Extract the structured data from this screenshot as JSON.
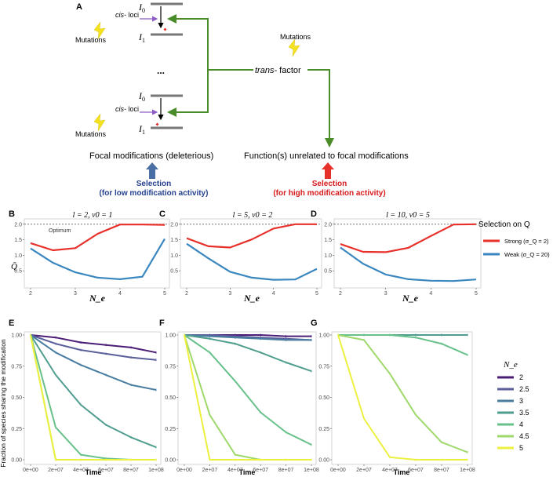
{
  "panel_a": {
    "label": "A",
    "level_top": "I",
    "level_top_sub": "0",
    "level_bottom": "I",
    "level_bottom_sub": "1",
    "cis_label": "cis-",
    "loci_label": " loci",
    "mutations_label": "Mutations",
    "ellipsis": "...",
    "trans_label": "trans-",
    "factor_label": " factor",
    "focal_text": "Focal modifications (deleterious)",
    "unrelated_text": "Function(s) unrelated to focal modifications",
    "sel_low_title": "Selection",
    "sel_low_sub": "(for low modification activity)",
    "sel_high_title": "Selection",
    "sel_high_sub": "(for high modification activity)",
    "colors": {
      "low": "#26418f",
      "high": "#d7191c",
      "arrow_green": "#4a8c2a",
      "arrow_purple": "#8e5cc7",
      "bolt": "#f4e21f"
    }
  },
  "legend_q": {
    "title": "Selection on Q",
    "strong": "Strong (σ_Q = 2)",
    "weak": "Weak (σ_Q = 20)"
  },
  "legend_ne": {
    "title": "N_e",
    "labels": [
      "2",
      "2.5",
      "3",
      "3.5",
      "4",
      "4.5",
      "5"
    ],
    "colors": [
      "#4b1d77",
      "#5a5e9a",
      "#4a7ea1",
      "#4f9d8e",
      "#68c08a",
      "#9fd86b",
      "#ecf03f"
    ]
  },
  "chart_data": [
    {
      "panel": "B",
      "type": "line",
      "title": "l = 2, v0 = 1",
      "xlabel": "N_e",
      "ylabel": "Q̄",
      "x": [
        2,
        2.5,
        3,
        3.5,
        4,
        4.5,
        5
      ],
      "xticks": [
        "2",
        "3",
        "4",
        "5"
      ],
      "yticks": [
        "0.5",
        "1.0",
        "1.5",
        "2.0"
      ],
      "xlim": [
        2,
        5
      ],
      "ylim": [
        0.1,
        2.07
      ],
      "annotation": "Optimum",
      "series": [
        {
          "name": "Strong",
          "color": "#e8302a",
          "values": [
            1.39,
            1.16,
            1.23,
            1.69,
            1.99,
            1.99,
            1.98
          ]
        },
        {
          "name": "Weak",
          "color": "#3a87c0",
          "values": [
            1.22,
            0.76,
            0.45,
            0.28,
            0.23,
            0.31,
            1.53
          ]
        }
      ]
    },
    {
      "panel": "C",
      "type": "line",
      "title": "l = 5, v0 = 2",
      "xlabel": "N_e",
      "ylabel": "",
      "x": [
        2,
        2.5,
        3,
        3.5,
        4,
        4.5,
        5
      ],
      "xticks": [
        "2",
        "3",
        "4",
        "5"
      ],
      "yticks": [
        "0.5",
        "1.0",
        "1.5",
        "2.0"
      ],
      "xlim": [
        2,
        5
      ],
      "ylim": [
        0.1,
        2.07
      ],
      "series": [
        {
          "name": "Strong",
          "color": "#e8302a",
          "values": [
            1.55,
            1.29,
            1.25,
            1.51,
            1.86,
            2.0,
            2.0
          ]
        },
        {
          "name": "Weak",
          "color": "#3a87c0",
          "values": [
            1.37,
            0.9,
            0.47,
            0.28,
            0.21,
            0.22,
            0.56
          ]
        }
      ]
    },
    {
      "panel": "D",
      "type": "line",
      "title": "l = 10, v0 = 5",
      "xlabel": "N_e",
      "ylabel": "",
      "x": [
        2,
        2.5,
        3,
        3.5,
        4,
        4.5,
        5
      ],
      "xticks": [
        "2",
        "3",
        "4",
        "5"
      ],
      "yticks": [
        "0.5",
        "1.0",
        "1.5",
        "2.0"
      ],
      "xlim": [
        2,
        5
      ],
      "ylim": [
        0.1,
        2.07
      ],
      "series": [
        {
          "name": "Strong",
          "color": "#e8302a",
          "values": [
            1.36,
            1.11,
            1.1,
            1.24,
            1.62,
            1.99,
            2.0
          ]
        },
        {
          "name": "Weak",
          "color": "#3a87c0",
          "values": [
            1.25,
            0.73,
            0.38,
            0.23,
            0.18,
            0.17,
            0.22
          ]
        }
      ]
    },
    {
      "panel": "E",
      "type": "line",
      "xlabel": "Time",
      "ylabel": "Fraction of species sharing the modification",
      "x": [
        0,
        20000000,
        40000000,
        60000000,
        80000000,
        100000000
      ],
      "xticks": [
        "0e+00",
        "2e+07",
        "4e+07",
        "6e+07",
        "8e+07",
        "1e+08"
      ],
      "yticks": [
        "0.00",
        "0.25",
        "0.50",
        "0.75",
        "1.00"
      ],
      "xlim": [
        0,
        100000000
      ],
      "ylim": [
        0,
        1
      ],
      "series": [
        {
          "name": "2",
          "values": [
            1.0,
            0.98,
            0.94,
            0.92,
            0.9,
            0.86
          ]
        },
        {
          "name": "2.5",
          "values": [
            1.0,
            0.93,
            0.88,
            0.85,
            0.82,
            0.8
          ]
        },
        {
          "name": "3",
          "values": [
            1.0,
            0.86,
            0.76,
            0.68,
            0.6,
            0.56
          ]
        },
        {
          "name": "3.5",
          "values": [
            1.0,
            0.68,
            0.44,
            0.28,
            0.18,
            0.1
          ]
        },
        {
          "name": "4",
          "values": [
            1.0,
            0.26,
            0.04,
            0.01,
            0.0,
            0.0
          ]
        },
        {
          "name": "4.5",
          "values": [
            1.0,
            0.0,
            0.0,
            0.0,
            0.0,
            0.0
          ]
        },
        {
          "name": "5",
          "values": [
            1.0,
            0.0,
            0.0,
            0.0,
            0.0,
            0.0
          ]
        }
      ]
    },
    {
      "panel": "F",
      "type": "line",
      "xlabel": "Time",
      "ylabel": "",
      "x": [
        0,
        20000000,
        40000000,
        60000000,
        80000000,
        100000000
      ],
      "xticks": [
        "0e+00",
        "2e+07",
        "4e+07",
        "6e+07",
        "8e+07",
        "1e+08"
      ],
      "yticks": [
        "0.00",
        "0.25",
        "0.50",
        "0.75",
        "1.00"
      ],
      "xlim": [
        0,
        100000000
      ],
      "ylim": [
        0,
        1
      ],
      "series": [
        {
          "name": "2",
          "values": [
            1.0,
            1.0,
            1.0,
            1.0,
            0.99,
            0.99
          ]
        },
        {
          "name": "2.5",
          "values": [
            1.0,
            1.0,
            0.99,
            0.98,
            0.97,
            0.96
          ]
        },
        {
          "name": "3",
          "values": [
            1.0,
            0.99,
            0.98,
            0.97,
            0.96,
            0.96
          ]
        },
        {
          "name": "3.5",
          "values": [
            1.0,
            0.97,
            0.93,
            0.86,
            0.78,
            0.71
          ]
        },
        {
          "name": "4",
          "values": [
            1.0,
            0.86,
            0.63,
            0.38,
            0.22,
            0.12
          ]
        },
        {
          "name": "4.5",
          "values": [
            1.0,
            0.36,
            0.04,
            0.0,
            0.0,
            0.0
          ]
        },
        {
          "name": "5",
          "values": [
            1.0,
            0.0,
            0.0,
            0.0,
            0.0,
            0.0
          ]
        }
      ]
    },
    {
      "panel": "G",
      "type": "line",
      "xlabel": "Time",
      "ylabel": "",
      "x": [
        0,
        20000000,
        40000000,
        60000000,
        80000000,
        100000000
      ],
      "xticks": [
        "0e+00",
        "2e+07",
        "4e+07",
        "6e+07",
        "8e+07",
        "1e+08"
      ],
      "yticks": [
        "0.00",
        "0.25",
        "0.50",
        "0.75",
        "1.00"
      ],
      "xlim": [
        0,
        100000000
      ],
      "ylim": [
        0,
        1
      ],
      "series": [
        {
          "name": "2",
          "values": [
            1.0,
            1.0,
            1.0,
            1.0,
            1.0,
            1.0
          ]
        },
        {
          "name": "2.5",
          "values": [
            1.0,
            1.0,
            1.0,
            1.0,
            1.0,
            1.0
          ]
        },
        {
          "name": "3",
          "values": [
            1.0,
            1.0,
            1.0,
            1.0,
            1.0,
            1.0
          ]
        },
        {
          "name": "3.5",
          "values": [
            1.0,
            1.0,
            1.0,
            1.0,
            1.0,
            1.0
          ]
        },
        {
          "name": "4",
          "values": [
            1.0,
            1.0,
            1.0,
            0.98,
            0.93,
            0.84
          ]
        },
        {
          "name": "4.5",
          "values": [
            1.0,
            0.96,
            0.69,
            0.36,
            0.14,
            0.06
          ]
        },
        {
          "name": "5",
          "values": [
            1.0,
            0.33,
            0.02,
            0.0,
            0.0,
            0.0
          ]
        }
      ]
    }
  ]
}
